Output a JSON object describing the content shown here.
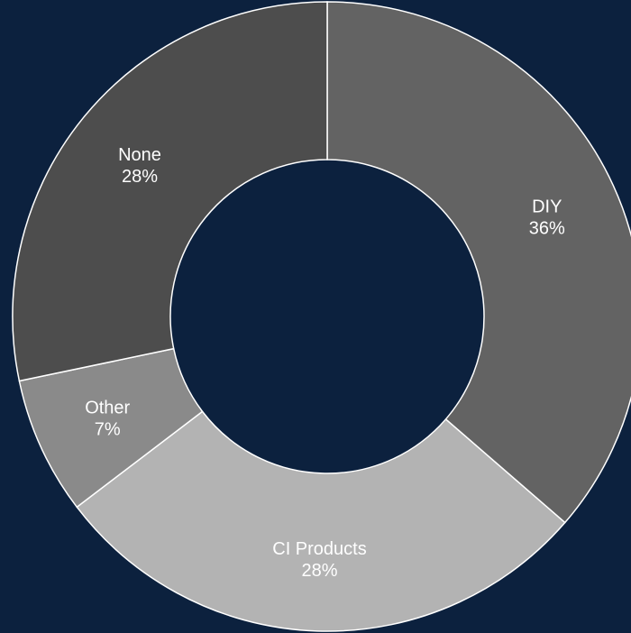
{
  "chart_data": {
    "type": "pie",
    "style": "donut",
    "start_angle_deg": 0,
    "direction": "clockwise",
    "background": "#0c213e",
    "slices": [
      {
        "label": "DIY",
        "percent_label": "36%",
        "value": 36,
        "color": "#636363"
      },
      {
        "label": "CI Products",
        "percent_label": "28%",
        "value": 28,
        "color": "#b3b3b3"
      },
      {
        "label": "Other",
        "percent_label": "7%",
        "value": 7,
        "color": "#8a8a8a"
      },
      {
        "label": "None",
        "percent_label": "28%",
        "value": 28,
        "color": "#4d4d4d"
      }
    ]
  }
}
